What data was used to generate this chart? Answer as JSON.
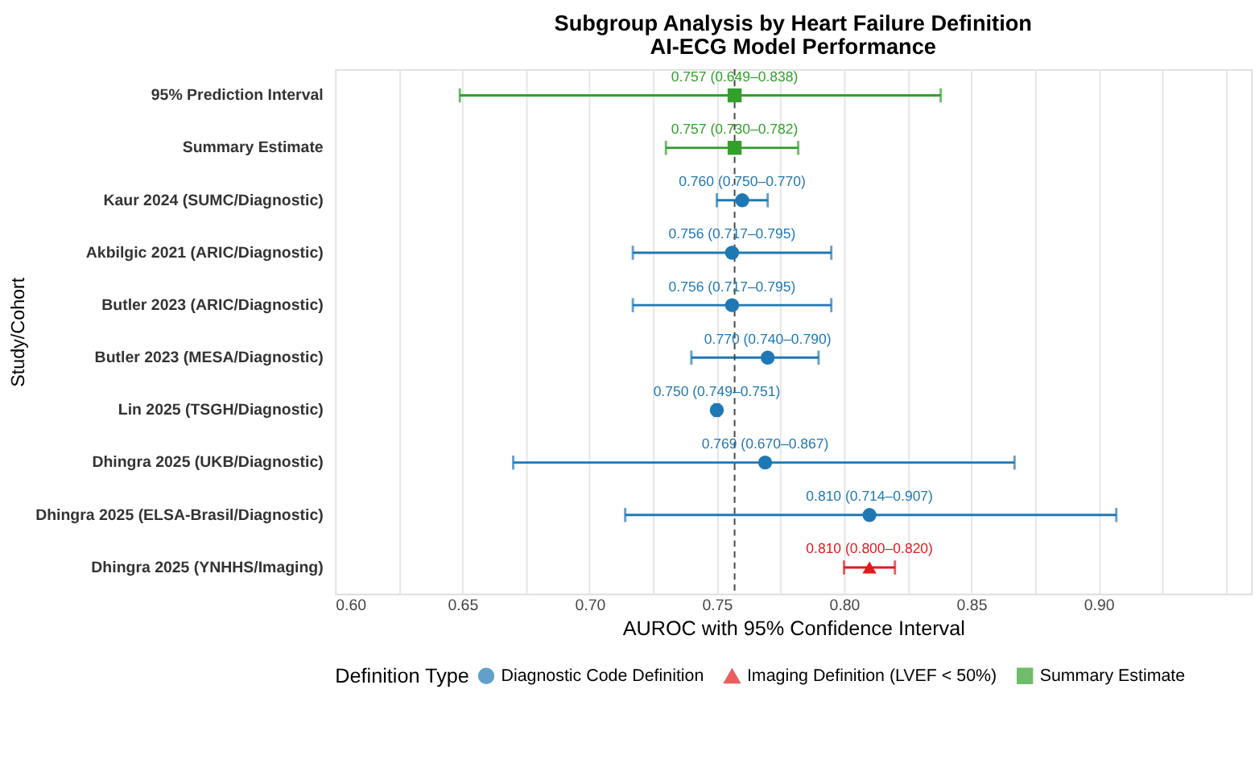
{
  "chart_data": {
    "type": "scatter",
    "orientation": "horizontal",
    "title": "Subgroup Analysis by Heart Failure Definition",
    "subtitle": "AI-ECG Model Performance",
    "xlabel": "AUROC with 95% Confidence Interval",
    "ylabel": "Study/Cohort",
    "legend_title": "Definition Type",
    "categories": [
      "95% Prediction Interval",
      "Summary Estimate",
      "Kaur 2024 (SUMC/Diagnostic)",
      "Akbilgic 2021 (ARIC/Diagnostic)",
      "Butler 2023 (ARIC/Diagnostic)",
      "Butler 2023 (MESA/Diagnostic)",
      "Lin 2025 (TSGH/Diagnostic)",
      "Dhingra 2025 (UKB/Diagnostic)",
      "Dhingra 2025 (ELSA-Brasil/Diagnostic)",
      "Dhingra 2025 (YNHHS/Imaging)"
    ],
    "series": [
      {
        "name": "Diagnostic Code Definition",
        "color": "#1f78b4",
        "marker": "circle",
        "values": [
          null,
          null,
          0.76,
          0.756,
          0.756,
          0.77,
          0.75,
          0.769,
          0.81,
          null
        ],
        "errors": [
          null,
          null,
          [
            0.75,
            0.77
          ],
          [
            0.717,
            0.795
          ],
          [
            0.717,
            0.795
          ],
          [
            0.74,
            0.79
          ],
          [
            0.749,
            0.751
          ],
          [
            0.67,
            0.867
          ],
          [
            0.714,
            0.907
          ],
          null
        ],
        "value_labels": [
          null,
          null,
          "0.760 (0.750–0.770)",
          "0.756 (0.717–0.795)",
          "0.756 (0.717–0.795)",
          "0.770 (0.740–0.790)",
          "0.750 (0.749–0.751)",
          "0.769 (0.670–0.867)",
          "0.810 (0.714–0.907)",
          null
        ]
      },
      {
        "name": "Imaging Definition (LVEF < 50%)",
        "color": "#e31a1c",
        "marker": "triangle",
        "values": [
          null,
          null,
          null,
          null,
          null,
          null,
          null,
          null,
          null,
          0.81
        ],
        "errors": [
          null,
          null,
          null,
          null,
          null,
          null,
          null,
          null,
          null,
          [
            0.8,
            0.82
          ]
        ],
        "value_labels": [
          null,
          null,
          null,
          null,
          null,
          null,
          null,
          null,
          null,
          "0.810 (0.800–0.820)"
        ]
      },
      {
        "name": "Summary Estimate",
        "color": "#33a02c",
        "marker": "square",
        "values": [
          0.757,
          0.757,
          null,
          null,
          null,
          null,
          null,
          null,
          null,
          null
        ],
        "errors": [
          [
            0.649,
            0.838
          ],
          [
            0.73,
            0.782
          ],
          null,
          null,
          null,
          null,
          null,
          null,
          null,
          null
        ],
        "value_labels": [
          "0.757 (0.649–0.838)",
          "0.757 (0.730–0.782)",
          null,
          null,
          null,
          null,
          null,
          null,
          null,
          null
        ]
      }
    ],
    "xlim": [
      0.6,
      0.96
    ],
    "xticks": [
      {
        "value": 0.6,
        "label": "0.60"
      },
      {
        "value": 0.625,
        "label": null
      },
      {
        "value": 0.65,
        "label": "0.65"
      },
      {
        "value": 0.675,
        "label": null
      },
      {
        "value": 0.7,
        "label": "0.70"
      },
      {
        "value": 0.725,
        "label": null
      },
      {
        "value": 0.75,
        "label": "0.75"
      },
      {
        "value": 0.775,
        "label": null
      },
      {
        "value": 0.8,
        "label": "0.80"
      },
      {
        "value": 0.825,
        "label": null
      },
      {
        "value": 0.85,
        "label": "0.85"
      },
      {
        "value": 0.875,
        "label": null
      },
      {
        "value": 0.9,
        "label": "0.90"
      },
      {
        "value": 0.925,
        "label": null
      },
      {
        "value": 0.95,
        "label": null
      }
    ],
    "ref_lines": [
      {
        "axis": "x",
        "value": 0.757,
        "color": "#444444",
        "line_style": "dashed"
      }
    ],
    "grid": "x",
    "legend": "bottom"
  }
}
